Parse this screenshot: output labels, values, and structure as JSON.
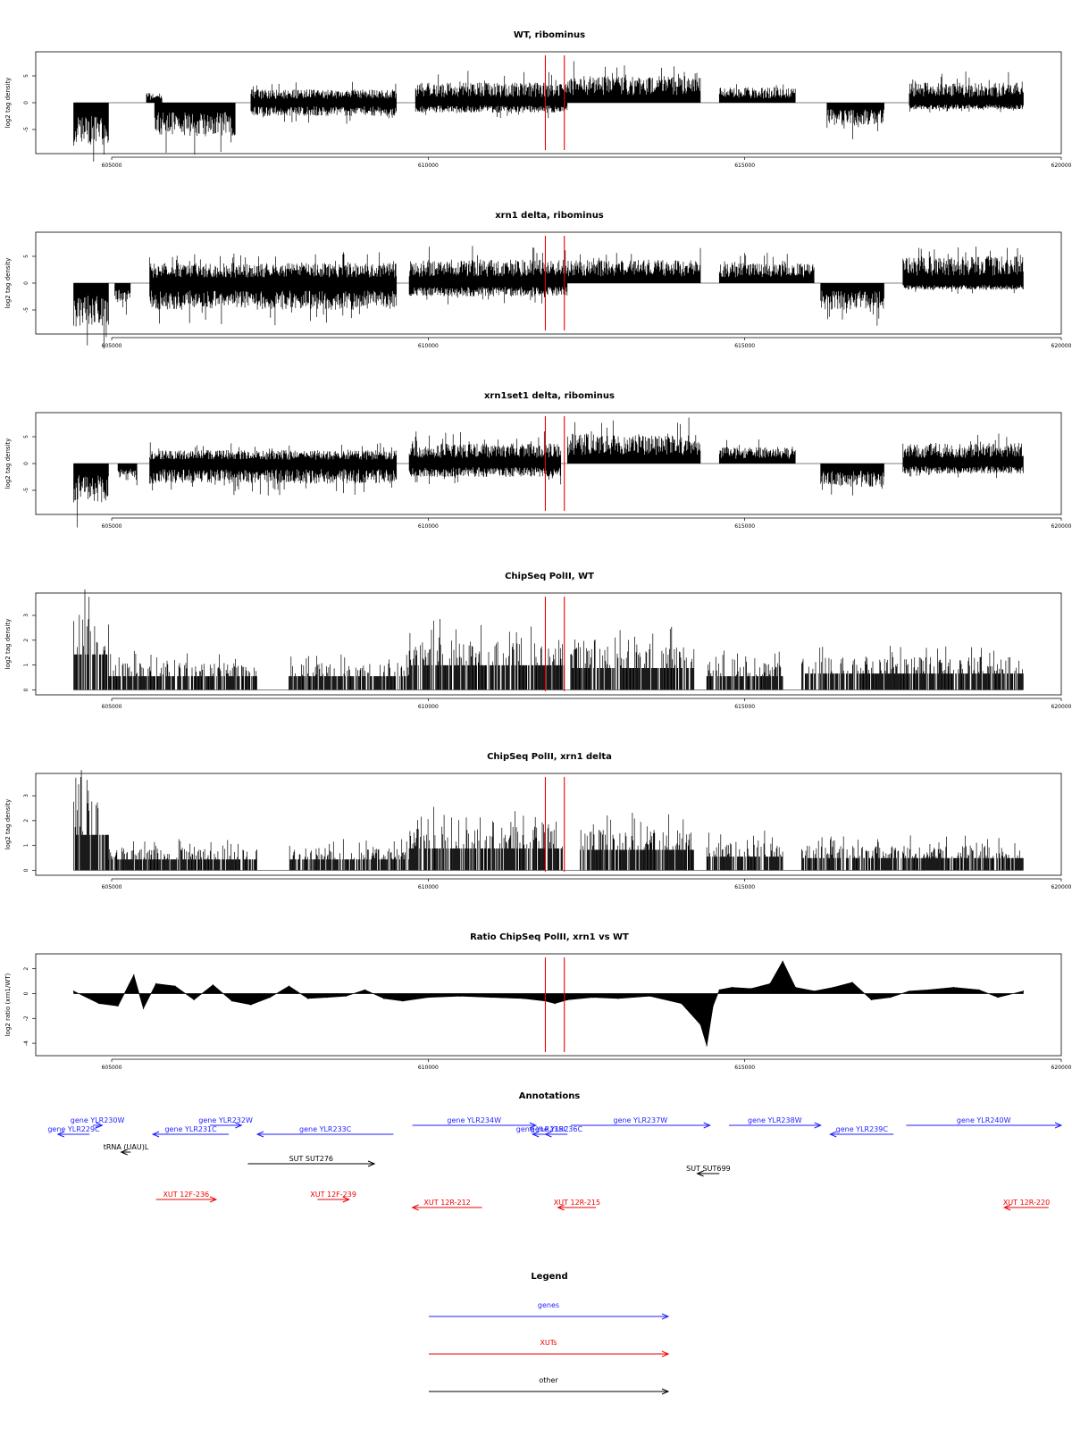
{
  "chart_data": [
    {
      "type": "bar",
      "title": "WT, ribominus",
      "ylabel": "log2 tag density",
      "xlim": [
        603800,
        620000
      ],
      "ylim": [
        -9.5,
        9.5
      ],
      "yticks": [
        -5,
        0,
        5
      ],
      "xticks": [
        605000,
        610000,
        615000,
        620000
      ],
      "markers": [
        611850,
        612150
      ],
      "segments": [
        {
          "start": 604400,
          "end": 604950,
          "sign": -1,
          "mag": 6.5
        },
        {
          "start": 605550,
          "end": 605800,
          "sign": 1,
          "mag": 1.5
        },
        {
          "start": 605680,
          "end": 606950,
          "sign": -1,
          "mag": 5.0
        },
        {
          "start": 607200,
          "end": 609500,
          "sign": 1,
          "mag": 2.0
        },
        {
          "start": 607200,
          "end": 609500,
          "sign": -1,
          "mag": 2.0
        },
        {
          "start": 609800,
          "end": 612200,
          "sign": 1,
          "mag": 3.0
        },
        {
          "start": 609800,
          "end": 612200,
          "sign": -1,
          "mag": 1.5
        },
        {
          "start": 612200,
          "end": 614300,
          "sign": 1,
          "mag": 4.0
        },
        {
          "start": 614600,
          "end": 615800,
          "sign": 1,
          "mag": 2.3
        },
        {
          "start": 616300,
          "end": 617200,
          "sign": -1,
          "mag": 3.5
        },
        {
          "start": 617600,
          "end": 619400,
          "sign": 1,
          "mag": 3.0
        },
        {
          "start": 617600,
          "end": 619400,
          "sign": -1,
          "mag": 1.0
        }
      ]
    },
    {
      "type": "bar",
      "title": "xrn1 delta, ribominus",
      "ylabel": "log2 tag density",
      "xlim": [
        603800,
        620000
      ],
      "ylim": [
        -9.5,
        9.5
      ],
      "yticks": [
        -5,
        0,
        5
      ],
      "xticks": [
        605000,
        610000,
        615000,
        620000
      ],
      "markers": [
        611850,
        612150
      ],
      "segments": [
        {
          "start": 604400,
          "end": 604950,
          "sign": -1,
          "mag": 6.5
        },
        {
          "start": 605050,
          "end": 605300,
          "sign": -1,
          "mag": 3.0
        },
        {
          "start": 605600,
          "end": 609500,
          "sign": 1,
          "mag": 3.0
        },
        {
          "start": 605600,
          "end": 609500,
          "sign": -1,
          "mag": 4.0
        },
        {
          "start": 609700,
          "end": 614300,
          "sign": 1,
          "mag": 3.5
        },
        {
          "start": 609700,
          "end": 612200,
          "sign": -1,
          "mag": 2.0
        },
        {
          "start": 614600,
          "end": 616100,
          "sign": 1,
          "mag": 3.0
        },
        {
          "start": 616200,
          "end": 617200,
          "sign": -1,
          "mag": 4.0
        },
        {
          "start": 617500,
          "end": 619400,
          "sign": 1,
          "mag": 4.0
        },
        {
          "start": 617500,
          "end": 619400,
          "sign": -1,
          "mag": 1.0
        }
      ]
    },
    {
      "type": "bar",
      "title": "xrn1set1 delta, ribominus",
      "ylabel": "log2 tag density",
      "xlim": [
        603800,
        620000
      ],
      "ylim": [
        -9.5,
        9.5
      ],
      "yticks": [
        -5,
        0,
        5
      ],
      "xticks": [
        605000,
        610000,
        615000,
        620000
      ],
      "markers": [
        611850,
        612150
      ],
      "segments": [
        {
          "start": 604400,
          "end": 604950,
          "sign": -1,
          "mag": 6.0
        },
        {
          "start": 605100,
          "end": 605400,
          "sign": -1,
          "mag": 2.5
        },
        {
          "start": 605600,
          "end": 609500,
          "sign": 1,
          "mag": 2.0
        },
        {
          "start": 605600,
          "end": 609500,
          "sign": -1,
          "mag": 3.0
        },
        {
          "start": 609700,
          "end": 612100,
          "sign": 1,
          "mag": 3.0
        },
        {
          "start": 609700,
          "end": 612100,
          "sign": -1,
          "mag": 2.0
        },
        {
          "start": 612200,
          "end": 614300,
          "sign": 1,
          "mag": 4.5
        },
        {
          "start": 614600,
          "end": 615800,
          "sign": 1,
          "mag": 2.5
        },
        {
          "start": 616200,
          "end": 617200,
          "sign": -1,
          "mag": 3.5
        },
        {
          "start": 617500,
          "end": 619400,
          "sign": 1,
          "mag": 3.0
        },
        {
          "start": 617500,
          "end": 619400,
          "sign": -1,
          "mag": 1.5
        }
      ]
    },
    {
      "type": "bar",
      "title": "ChipSeq PolII, WT",
      "ylabel": "log2 tag density",
      "xlim": [
        603800,
        620000
      ],
      "ylim": [
        -0.2,
        3.9
      ],
      "yticks": [
        0,
        1,
        2,
        3
      ],
      "xticks": [
        605000,
        610000,
        615000,
        620000
      ],
      "markers": [
        611850,
        612150
      ],
      "segments": [
        {
          "start": 604400,
          "end": 604950,
          "sign": 1,
          "mag": 2.6
        },
        {
          "start": 604950,
          "end": 607300,
          "sign": 1,
          "mag": 1.0
        },
        {
          "start": 607800,
          "end": 609700,
          "sign": 1,
          "mag": 1.0
        },
        {
          "start": 609700,
          "end": 612150,
          "sign": 1,
          "mag": 1.8
        },
        {
          "start": 612250,
          "end": 614200,
          "sign": 1,
          "mag": 1.6
        },
        {
          "start": 614400,
          "end": 615600,
          "sign": 1,
          "mag": 1.0
        },
        {
          "start": 615900,
          "end": 619400,
          "sign": 1,
          "mag": 1.2
        }
      ]
    },
    {
      "type": "bar",
      "title": "ChipSeq PolII, xrn1 delta",
      "ylabel": "log2 tag density",
      "xlim": [
        603800,
        620000
      ],
      "ylim": [
        -0.2,
        3.9
      ],
      "yticks": [
        0,
        1,
        2,
        3
      ],
      "xticks": [
        605000,
        610000,
        615000,
        620000
      ],
      "markers": [
        611850,
        612150
      ],
      "segments": [
        {
          "start": 604400,
          "end": 604950,
          "sign": 1,
          "mag": 2.6
        },
        {
          "start": 604950,
          "end": 607300,
          "sign": 1,
          "mag": 0.8
        },
        {
          "start": 607800,
          "end": 609700,
          "sign": 1,
          "mag": 0.8
        },
        {
          "start": 609700,
          "end": 612150,
          "sign": 1,
          "mag": 1.6
        },
        {
          "start": 612400,
          "end": 614200,
          "sign": 1,
          "mag": 1.5
        },
        {
          "start": 614400,
          "end": 615600,
          "sign": 1,
          "mag": 1.0
        },
        {
          "start": 615900,
          "end": 619400,
          "sign": 1,
          "mag": 0.9
        }
      ]
    },
    {
      "type": "area",
      "title": "Ratio ChipSeq PolII, xrn1 vs WT",
      "ylabel": "log2 ratio (xrn1/WT)",
      "xlim": [
        603800,
        620000
      ],
      "ylim": [
        -5,
        3.2
      ],
      "yticks": [
        -4,
        -2,
        0,
        2
      ],
      "xticks": [
        605000,
        610000,
        615000,
        620000
      ],
      "markers": [
        611850,
        612150
      ],
      "x": [
        604400,
        604800,
        605100,
        605350,
        605500,
        605700,
        606000,
        606300,
        606600,
        606900,
        607200,
        607500,
        607800,
        608100,
        608400,
        608700,
        609000,
        609300,
        609600,
        610000,
        610500,
        611000,
        611500,
        611850,
        612000,
        612200,
        612600,
        613000,
        613500,
        614000,
        614300,
        614400,
        614500,
        614600,
        614800,
        615100,
        615400,
        615600,
        615800,
        616100,
        616400,
        616700,
        617000,
        617300,
        617600,
        617900,
        618300,
        618700,
        619000,
        619400
      ],
      "values": [
        0.2,
        -0.8,
        -1.0,
        1.5,
        -1.2,
        0.8,
        0.6,
        -0.5,
        0.7,
        -0.6,
        -0.9,
        -0.3,
        0.6,
        -0.4,
        -0.3,
        -0.2,
        0.3,
        -0.4,
        -0.6,
        -0.3,
        -0.2,
        -0.3,
        -0.4,
        -0.6,
        -0.8,
        -0.5,
        -0.3,
        -0.4,
        -0.2,
        -0.8,
        -2.5,
        -4.2,
        -1.0,
        0.3,
        0.5,
        0.4,
        0.8,
        2.6,
        0.5,
        0.2,
        0.5,
        0.9,
        -0.5,
        -0.3,
        0.2,
        0.3,
        0.5,
        0.3,
        -0.3,
        0.2
      ]
    }
  ],
  "annotations": {
    "title": "Annotations",
    "color_gene": "#1f1fff",
    "color_xut": "#ee0000",
    "color_other": "#000000",
    "features": [
      {
        "label": "gene YLR230W",
        "kind": "gene",
        "x1": 604700,
        "x2": 604850,
        "row": 0,
        "dir": "right"
      },
      {
        "label": "gene YLR229C",
        "kind": "gene",
        "x1": 604150,
        "x2": 604650,
        "row": 1,
        "dir": "left"
      },
      {
        "label": "gene YLR231C",
        "kind": "gene",
        "x1": 605650,
        "x2": 606850,
        "row": 1,
        "dir": "left"
      },
      {
        "label": "gene YLR232W",
        "kind": "gene",
        "x1": 606550,
        "x2": 607050,
        "row": 0,
        "dir": "right"
      },
      {
        "label": "gene YLR233C",
        "kind": "gene",
        "x1": 607300,
        "x2": 609450,
        "row": 1,
        "dir": "left"
      },
      {
        "label": "gene YLR234W",
        "kind": "gene",
        "x1": 609750,
        "x2": 611700,
        "row": 0,
        "dir": "right"
      },
      {
        "label": "gene YLR235C",
        "kind": "gene",
        "x1": 611650,
        "x2": 611950,
        "row": 1,
        "dir": "left"
      },
      {
        "label": "gene YLR236C",
        "kind": "gene",
        "x1": 611850,
        "x2": 612200,
        "row": 1,
        "dir": "left"
      },
      {
        "label": "gene YLR237W",
        "kind": "gene",
        "x1": 612250,
        "x2": 614450,
        "row": 0,
        "dir": "right"
      },
      {
        "label": "gene YLR238W",
        "kind": "gene",
        "x1": 614750,
        "x2": 616200,
        "row": 0,
        "dir": "right"
      },
      {
        "label": "gene YLR239C",
        "kind": "gene",
        "x1": 616350,
        "x2": 617350,
        "row": 1,
        "dir": "left"
      },
      {
        "label": "gene YLR240W",
        "kind": "gene",
        "x1": 617550,
        "x2": 620000,
        "row": 0,
        "dir": "right"
      },
      {
        "label": "tRNA (UAU)L",
        "kind": "other",
        "x1": 605150,
        "x2": 605300,
        "row": 2,
        "dir": "left"
      },
      {
        "label": "SUT SUT276",
        "kind": "other",
        "x1": 607150,
        "x2": 609150,
        "row": 3,
        "dir": "right"
      },
      {
        "label": "SUT SUT699",
        "kind": "other",
        "x1": 614250,
        "x2": 614600,
        "row": 4,
        "dir": "left"
      },
      {
        "label": "XUT 12F-236",
        "kind": "xut",
        "x1": 605700,
        "x2": 606650,
        "row": 5,
        "dir": "right"
      },
      {
        "label": "XUT 12F-239",
        "kind": "xut",
        "x1": 608250,
        "x2": 608750,
        "row": 5,
        "dir": "right"
      },
      {
        "label": "XUT 12R-212",
        "kind": "xut",
        "x1": 609750,
        "x2": 610850,
        "row": 6,
        "dir": "left"
      },
      {
        "label": "XUT 12R-215",
        "kind": "xut",
        "x1": 612050,
        "x2": 612650,
        "row": 6,
        "dir": "left"
      },
      {
        "label": "XUT 12R-220",
        "kind": "xut",
        "x1": 619100,
        "x2": 619800,
        "row": 6,
        "dir": "left"
      }
    ]
  },
  "legend": {
    "title": "Legend",
    "items": [
      {
        "label": "genes",
        "color": "#1f1fff"
      },
      {
        "label": "XUTs",
        "color": "#ee0000"
      },
      {
        "label": "other",
        "color": "#000000"
      }
    ]
  }
}
